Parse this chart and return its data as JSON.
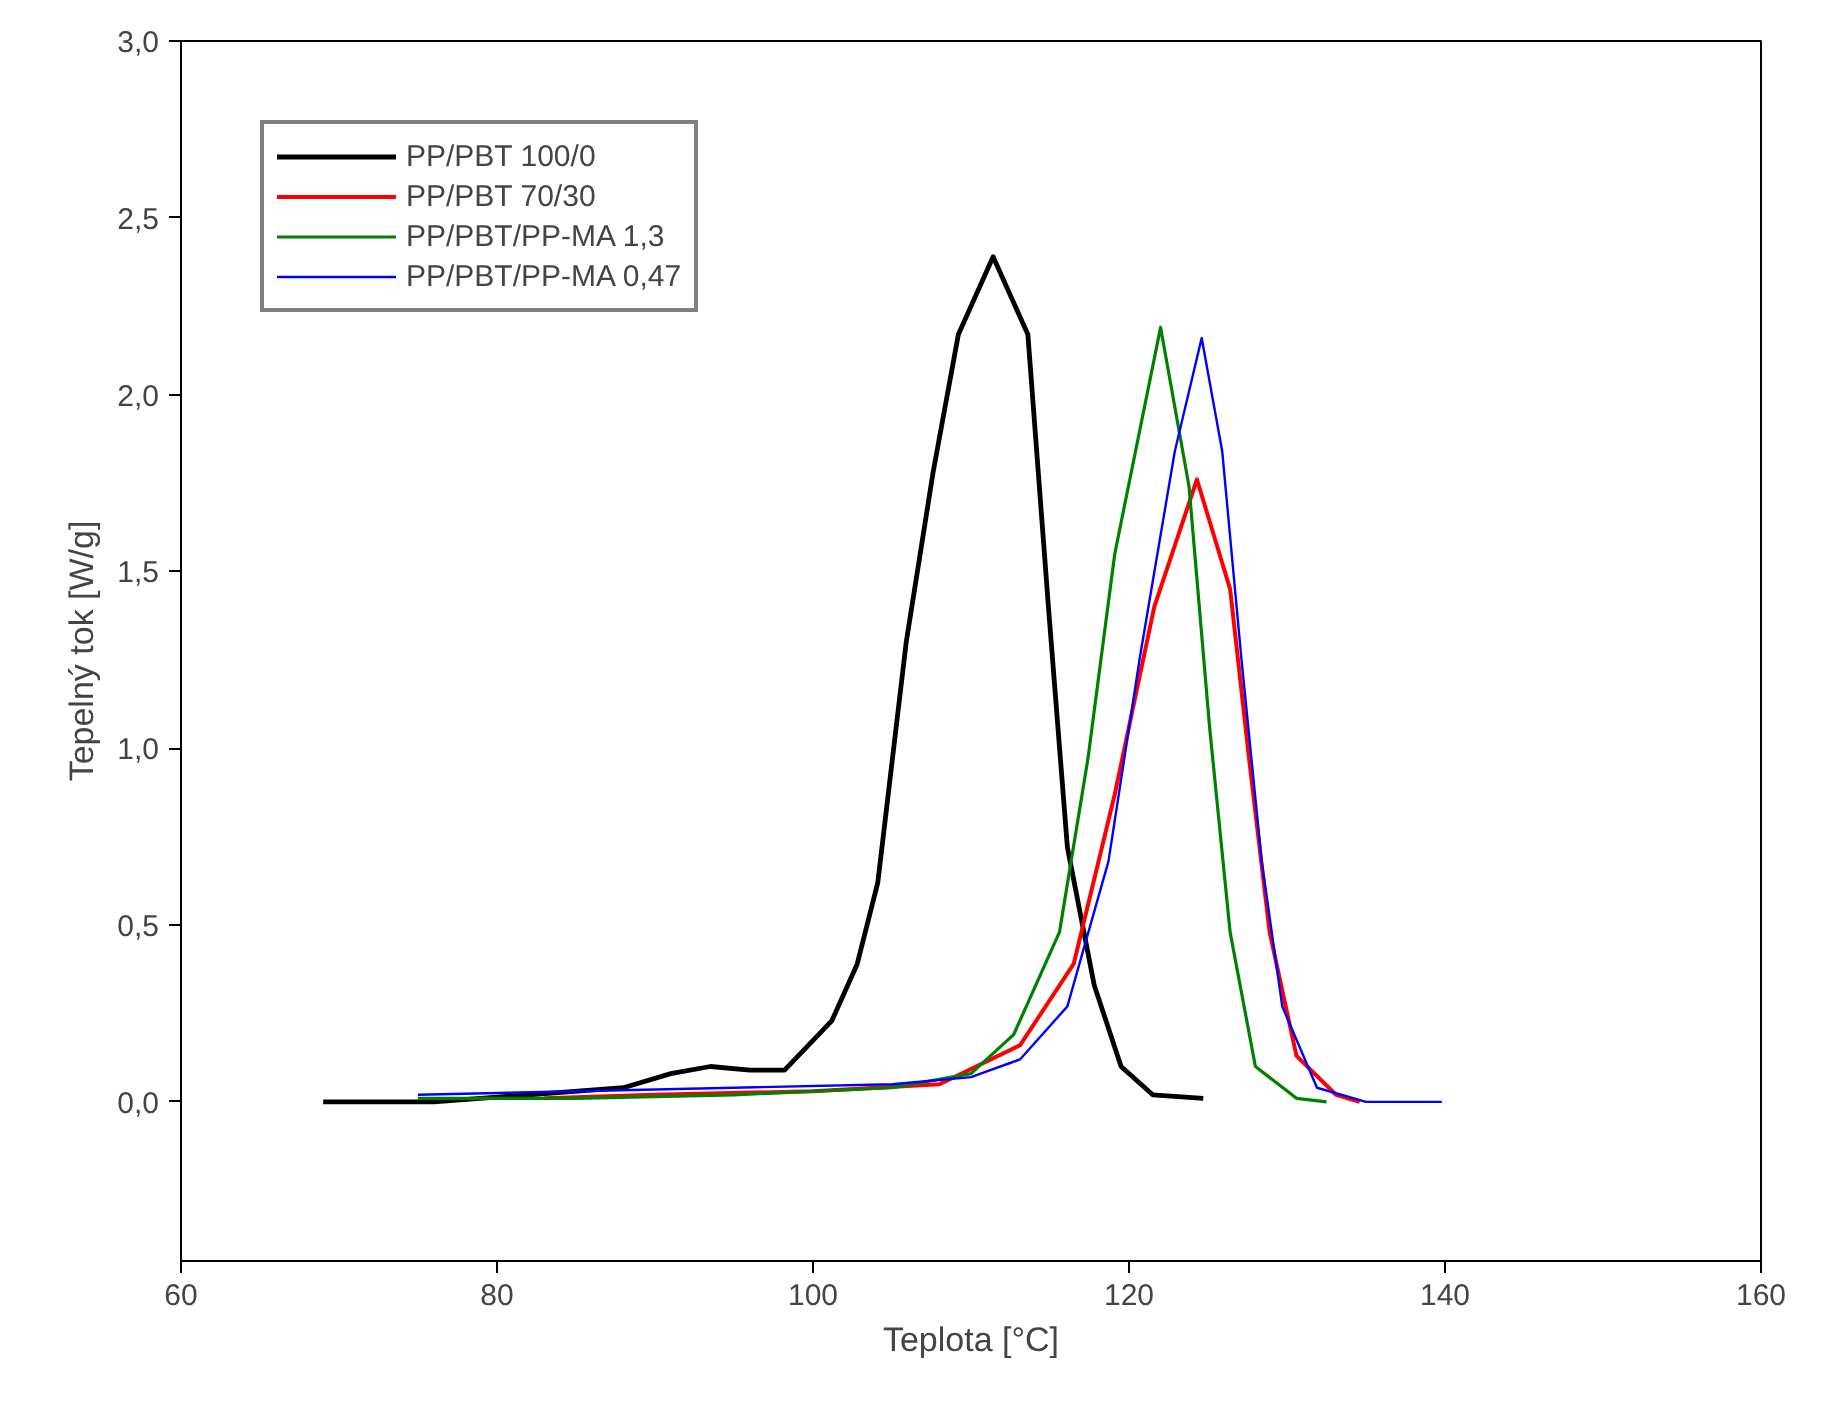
{
  "chart_data": {
    "type": "line",
    "xlabel": "Teplota [°C]",
    "ylabel": "Tepelný tok [W/g]",
    "xlim": [
      60,
      160
    ],
    "xticks": [
      60,
      80,
      100,
      120,
      140,
      160
    ],
    "ylim": [
      -0.45,
      3.0
    ],
    "yticks": [
      {
        "value": 0,
        "label": "0,0"
      },
      {
        "value": 0.5,
        "label": "0,5"
      },
      {
        "value": 1,
        "label": "1,0"
      },
      {
        "value": 1.5,
        "label": "1,5"
      },
      {
        "value": 2,
        "label": "2,0"
      },
      {
        "value": 2.5,
        "label": "2,5"
      },
      {
        "value": 3,
        "label": "3,0"
      }
    ],
    "grid": false,
    "legend": "top left",
    "marker": "none",
    "line_style": "solid",
    "series": [
      {
        "name": "PP/PBT 100/0",
        "color": "#000000",
        "x": [
          69.0,
          76,
          82,
          88,
          91,
          93.5,
          96,
          98.2,
          101.2,
          102.8,
          104.1,
          105.9,
          107.6,
          109.2,
          111.4,
          113.6,
          114.9,
          116.1,
          117.8,
          119.5,
          121.5,
          124.7
        ],
        "values": [
          0.0,
          0.0,
          0.02,
          0.04,
          0.08,
          0.1,
          0.09,
          0.09,
          0.23,
          0.39,
          0.62,
          1.3,
          1.78,
          2.17,
          2.39,
          2.17,
          1.4,
          0.72,
          0.33,
          0.1,
          0.02,
          0.01
        ]
      },
      {
        "name": "PP/PBT 70/30",
        "color": "#ff0000",
        "x": [
          83.0,
          90,
          100,
          108,
          113.1,
          116.5,
          119.1,
          121.6,
          124.3,
          126.4,
          127.6,
          128.9,
          130.6,
          133.1,
          134.6
        ],
        "values": [
          0.01,
          0.02,
          0.03,
          0.05,
          0.16,
          0.39,
          0.87,
          1.4,
          1.76,
          1.45,
          0.97,
          0.48,
          0.13,
          0.02,
          0.0
        ]
      },
      {
        "name": "PP/PBT/PP-MA 1,3",
        "color": "#008000",
        "x": [
          75.0,
          85,
          95,
          105,
          110,
          112.7,
          115.6,
          117.4,
          119.1,
          122.0,
          123.8,
          125.1,
          126.4,
          128.0,
          130.6,
          132.5
        ],
        "values": [
          0.01,
          0.01,
          0.02,
          0.04,
          0.08,
          0.19,
          0.48,
          0.97,
          1.55,
          2.19,
          1.74,
          1.06,
          0.48,
          0.1,
          0.01,
          0.0
        ]
      },
      {
        "name": "PP/PBT/PP-MA 0,47",
        "color": "#0000ff",
        "x": [
          75.0,
          85,
          95,
          105,
          110,
          113.1,
          116.1,
          118.7,
          120.7,
          122.9,
          124.6,
          125.9,
          127.1,
          128.4,
          129.7,
          131.9,
          135,
          139.8
        ],
        "values": [
          0.02,
          0.03,
          0.04,
          0.05,
          0.07,
          0.12,
          0.27,
          0.68,
          1.26,
          1.84,
          2.16,
          1.84,
          1.26,
          0.68,
          0.27,
          0.04,
          0.0,
          0.0
        ]
      }
    ]
  }
}
